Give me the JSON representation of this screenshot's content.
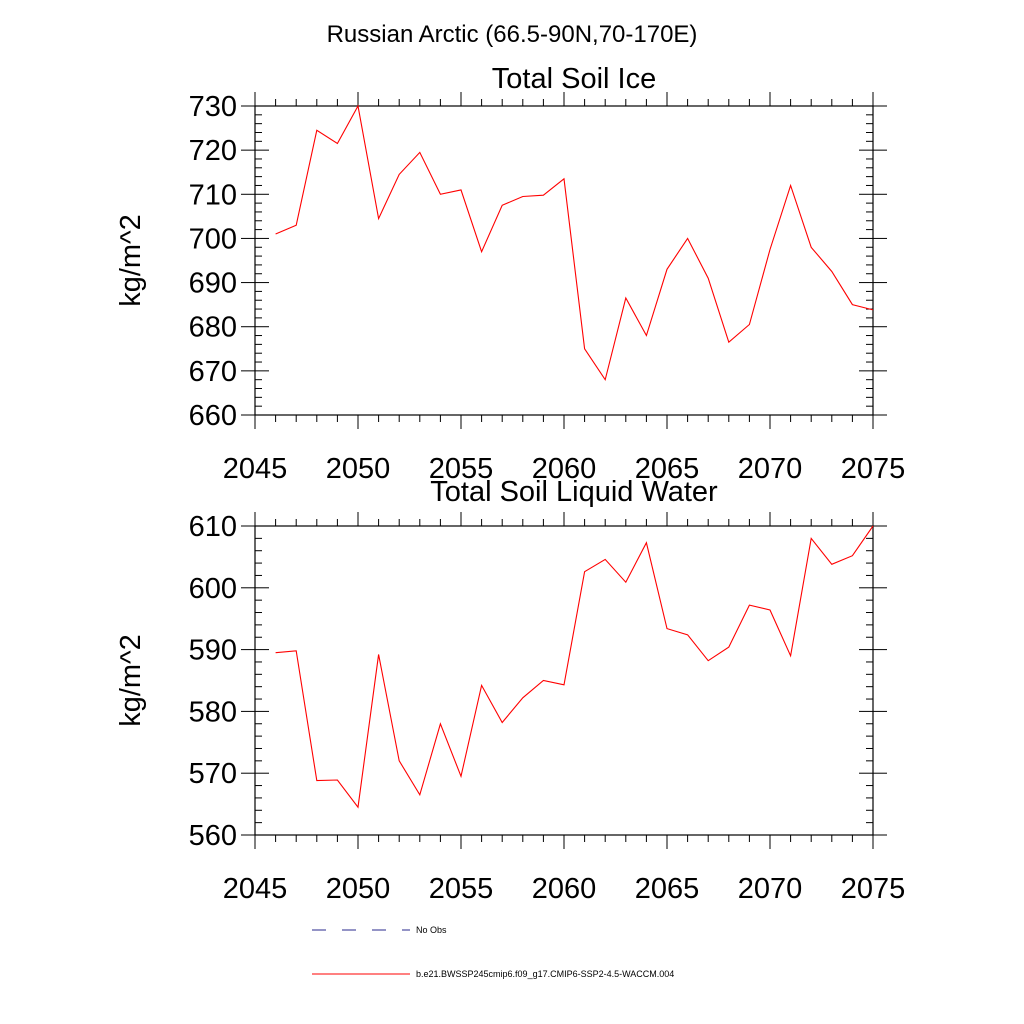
{
  "figure": {
    "suptitle": "Russian Arctic (66.5-90N,70-170E)"
  },
  "chart_data": [
    {
      "type": "line",
      "title": "Total Soil Ice",
      "xlabel": "",
      "ylabel": "kg/m^2",
      "xlim": [
        2045,
        2075
      ],
      "ylim": [
        660,
        730
      ],
      "x_ticks": [
        2045,
        2050,
        2055,
        2060,
        2065,
        2070,
        2075
      ],
      "y_ticks": [
        660,
        670,
        680,
        690,
        700,
        710,
        720,
        730
      ],
      "grid": false,
      "series": [
        {
          "name": "b.e21.BWSSP245cmip6.f09_g17.CMIP6-SSP2-4.5-WACCM.004",
          "color": "#ff0000",
          "x": [
            2046,
            2047,
            2048,
            2049,
            2050,
            2051,
            2052,
            2053,
            2054,
            2055,
            2056,
            2057,
            2058,
            2059,
            2060,
            2061,
            2062,
            2063,
            2064,
            2065,
            2066,
            2067,
            2068,
            2069,
            2070,
            2071,
            2072,
            2073,
            2074,
            2075
          ],
          "values": [
            701,
            703,
            724.5,
            721.5,
            730,
            704.5,
            714.5,
            719.5,
            710,
            711,
            697,
            707.5,
            709.5,
            709.8,
            713.5,
            675,
            668,
            686.5,
            678,
            693,
            700,
            691,
            676.5,
            680.5,
            697.5,
            712,
            698,
            692.5,
            685,
            683.8
          ]
        }
      ]
    },
    {
      "type": "line",
      "title": "Total Soil Liquid Water",
      "xlabel": "",
      "ylabel": "kg/m^2",
      "xlim": [
        2045,
        2075
      ],
      "ylim": [
        560,
        610
      ],
      "x_ticks": [
        2045,
        2050,
        2055,
        2060,
        2065,
        2070,
        2075
      ],
      "y_ticks": [
        560,
        570,
        580,
        590,
        600,
        610
      ],
      "grid": false,
      "series": [
        {
          "name": "b.e21.BWSSP245cmip6.f09_g17.CMIP6-SSP2-4.5-WACCM.004",
          "color": "#ff0000",
          "x": [
            2046,
            2047,
            2048,
            2049,
            2050,
            2051,
            2052,
            2053,
            2054,
            2055,
            2056,
            2057,
            2058,
            2059,
            2060,
            2061,
            2062,
            2063,
            2064,
            2065,
            2066,
            2067,
            2068,
            2069,
            2070,
            2071,
            2072,
            2073,
            2074,
            2075
          ],
          "values": [
            589.5,
            589.8,
            568.8,
            568.9,
            564.5,
            589.2,
            572,
            566.5,
            578,
            569.5,
            584.2,
            578.2,
            582.2,
            585,
            584.3,
            602.6,
            604.6,
            600.9,
            607.3,
            593.4,
            592.4,
            588.2,
            590.4,
            597.2,
            596.4,
            589,
            608,
            603.8,
            605.2,
            610
          ]
        }
      ]
    }
  ],
  "legend": {
    "placement": "bottom",
    "items": [
      {
        "label": "No Obs",
        "color": "#2a2a8c",
        "style": "dashed"
      },
      {
        "label": "b.e21.BWSSP245cmip6.f09_g17.CMIP6-SSP2-4.5-WACCM.004",
        "color": "#ff0000",
        "style": "solid"
      }
    ]
  }
}
